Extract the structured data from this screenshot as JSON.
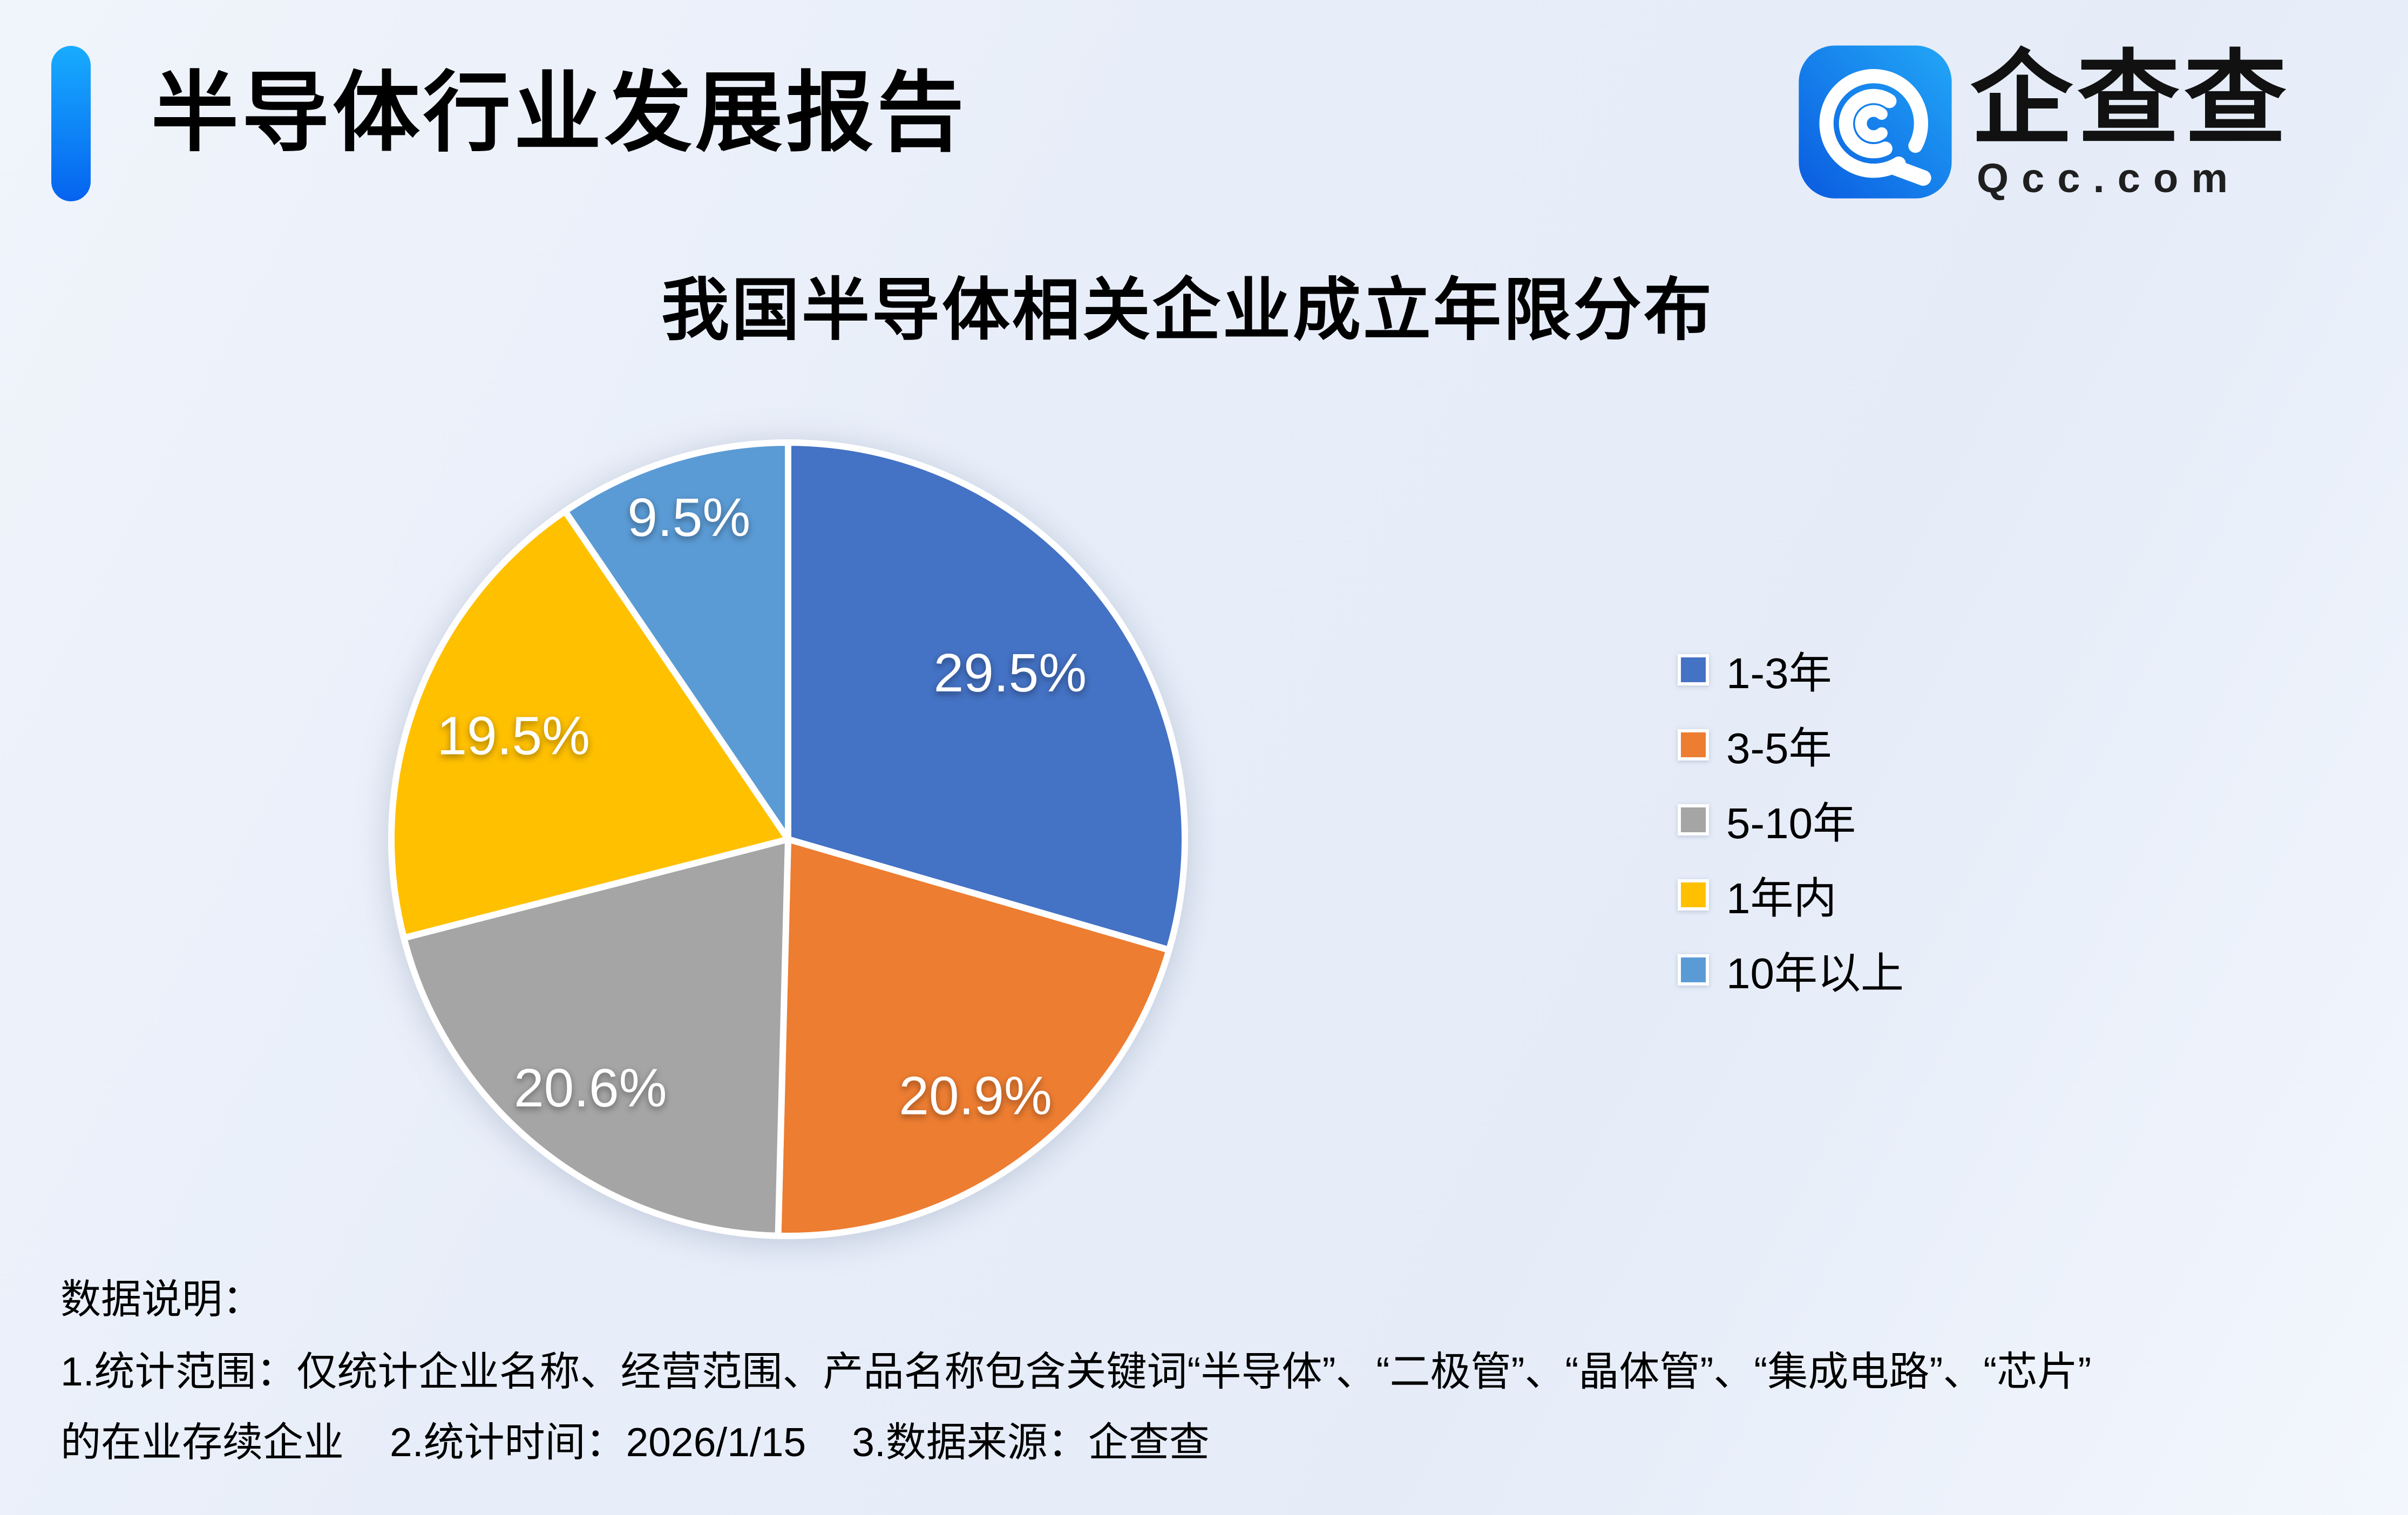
{
  "header": {
    "title": "半导体行业发展报告",
    "logo": {
      "brand": "企查查",
      "domain": "Qcc.com"
    }
  },
  "chart_data": {
    "type": "pie",
    "title": "我国半导体相关企业成立年限分布",
    "categories": [
      "1-3年",
      "3-5年",
      "5-10年",
      "1年内",
      "10年以上"
    ],
    "values": [
      29.5,
      20.9,
      20.6,
      19.5,
      9.5
    ],
    "labels": [
      "29.5%",
      "20.9%",
      "20.6%",
      "19.5%",
      "9.5%"
    ],
    "colors": [
      "#4472C4",
      "#ED7D31",
      "#A5A5A5",
      "#FFC000",
      "#5B9BD5"
    ],
    "unit": "%",
    "start_angle_deg": 0,
    "direction": "clockwise",
    "legend_position": "right",
    "label_color": "#FFFFFF"
  },
  "footer": {
    "heading": "数据说明：",
    "scope_line": "1.统计范围：仅统计企业名称、经营范围、产品名称包含关键词“半导体”、“二极管”、“晶体管”、“集成电路”、“芯片”",
    "continuation": "的在业存续企业",
    "stat_time": "2.统计时间：2026/1/15",
    "data_source": "3.数据来源：企查查"
  },
  "theme": {
    "accent_bar_top": "#18ACFF",
    "accent_bar_bottom": "#0563EF",
    "logo_blue_dark": "#0A5BE0",
    "logo_blue_light": "#22A7F7",
    "background": "#EAF0F9",
    "pie_label_color": "#FFFFFF"
  }
}
